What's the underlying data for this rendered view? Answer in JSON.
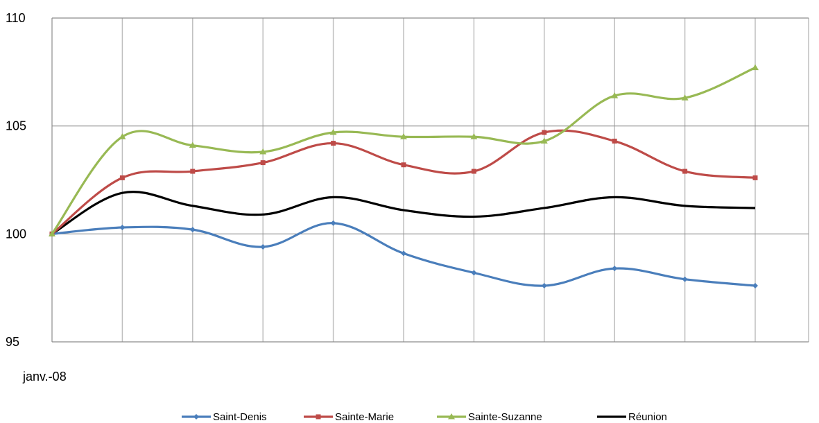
{
  "chart_data": {
    "type": "line",
    "title": "",
    "xlabel": "",
    "ylabel": "",
    "x_tick_labels": [
      "janv.-08"
    ],
    "ylim": [
      95,
      110
    ],
    "y_ticks": [
      "95",
      "100",
      "105",
      "110"
    ],
    "grid": true,
    "legend_position": "bottom",
    "series": [
      {
        "name": "Saint-Denis",
        "color": "#4a7ebb",
        "marker": "diamond",
        "values": [
          100,
          100.3,
          100.2,
          99.4,
          100.5,
          99.1,
          98.2,
          97.6,
          98.4,
          97.9,
          97.6
        ]
      },
      {
        "name": "Sainte-Marie",
        "color": "#be4b48",
        "marker": "square",
        "values": [
          100,
          102.6,
          102.9,
          103.3,
          104.2,
          103.2,
          102.9,
          104.7,
          104.3,
          102.9,
          102.6
        ]
      },
      {
        "name": "Sainte-Suzanne",
        "color": "#98b954",
        "marker": "triangle",
        "values": [
          100,
          104.5,
          104.1,
          103.8,
          104.7,
          104.5,
          104.5,
          104.3,
          106.4,
          106.3,
          107.7
        ]
      },
      {
        "name": "Réunion",
        "color": "#000000",
        "marker": "none",
        "values": [
          100,
          101.9,
          101.3,
          100.9,
          101.7,
          101.1,
          100.8,
          101.2,
          101.7,
          101.3,
          101.2
        ]
      }
    ]
  }
}
